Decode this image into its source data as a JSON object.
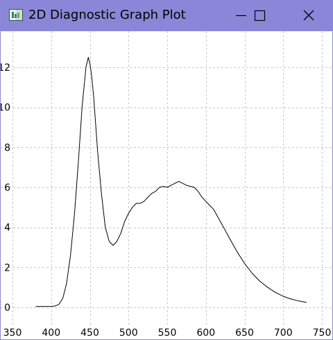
{
  "window": {
    "title": "2D Diagnostic Graph Plot",
    "titlebar_color": "#8b87d8",
    "icons": {
      "app": "graph-app-icon",
      "minimize": "minimize-icon",
      "maximize": "maximize-icon",
      "close": "close-icon"
    }
  },
  "chart_data": {
    "type": "line",
    "title": "",
    "xlabel": "",
    "ylabel": "",
    "xlim": [
      350,
      750
    ],
    "ylim": [
      -0.6,
      12.8
    ],
    "xticks": [
      350,
      400,
      450,
      500,
      550,
      600,
      650,
      700,
      750
    ],
    "yticks": [
      0,
      2,
      4,
      6,
      8,
      10,
      12
    ],
    "grid": true,
    "grid_style": "dashed",
    "line_color": "#000000",
    "series": [
      {
        "x": [
          380,
          390,
          400,
          405,
          410,
          415,
          420,
          425,
          430,
          435,
          440,
          445,
          448,
          450,
          452,
          455,
          460,
          465,
          470,
          475,
          480,
          485,
          490,
          495,
          500,
          505,
          510,
          515,
          520,
          525,
          530,
          535,
          540,
          545,
          550,
          555,
          560,
          565,
          570,
          575,
          580,
          585,
          590,
          595,
          600,
          605,
          610,
          620,
          630,
          640,
          650,
          660,
          670,
          680,
          690,
          700,
          710,
          720,
          730
        ],
        "y": [
          0.05,
          0.05,
          0.05,
          0.07,
          0.15,
          0.45,
          1.2,
          2.6,
          4.6,
          7.2,
          10.0,
          12.0,
          12.5,
          12.2,
          11.7,
          10.5,
          7.8,
          5.7,
          4.0,
          3.3,
          3.1,
          3.3,
          3.7,
          4.3,
          4.7,
          5.0,
          5.2,
          5.2,
          5.3,
          5.5,
          5.7,
          5.8,
          6.0,
          6.05,
          6.0,
          6.1,
          6.2,
          6.3,
          6.2,
          6.1,
          6.05,
          6.0,
          5.8,
          5.5,
          5.3,
          5.1,
          4.9,
          4.2,
          3.5,
          2.8,
          2.2,
          1.7,
          1.3,
          1.0,
          0.75,
          0.55,
          0.42,
          0.32,
          0.25
        ]
      }
    ]
  }
}
